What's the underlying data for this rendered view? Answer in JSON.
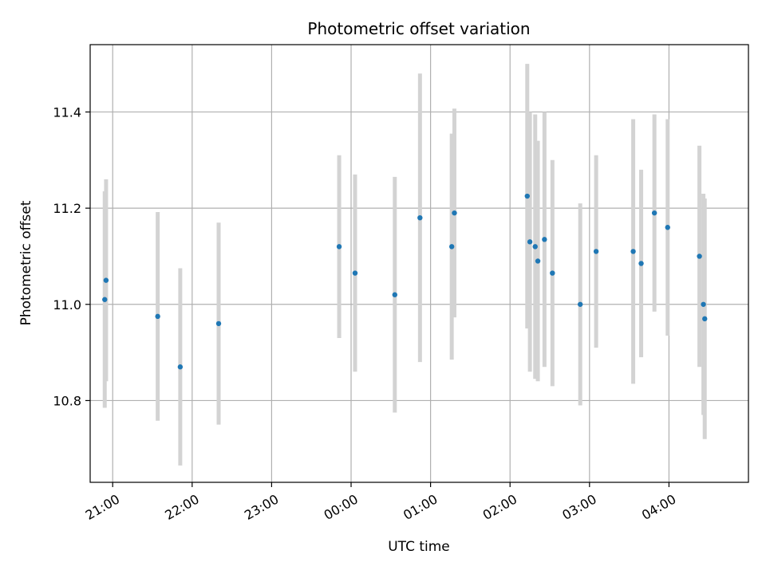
{
  "chart_data": {
    "type": "scatter",
    "title": "Photometric offset variation",
    "xlabel": "UTC time",
    "ylabel": "Photometric offset",
    "x_tick_labels": [
      "21:00",
      "22:00",
      "23:00",
      "00:00",
      "01:00",
      "02:00",
      "03:00",
      "04:00"
    ],
    "y_tick_labels": [
      "10.8",
      "11.0",
      "11.2",
      "11.4"
    ],
    "y_ticks": [
      10.8,
      11.0,
      11.2,
      11.4
    ],
    "ylim": [
      10.63,
      11.54
    ],
    "xlim": [
      "20:43",
      "05:00"
    ],
    "grid": true,
    "colors": {
      "point": "#1f77b4",
      "errorbar": "#d3d3d3",
      "grid": "#b0b0b0"
    },
    "points": [
      {
        "time": "20:54",
        "value": 11.01,
        "error": 0.225
      },
      {
        "time": "20:55",
        "value": 11.05,
        "error": 0.21
      },
      {
        "time": "21:34",
        "value": 10.975,
        "error": 0.217
      },
      {
        "time": "21:51",
        "value": 10.87,
        "error": 0.205
      },
      {
        "time": "22:20",
        "value": 10.96,
        "error": 0.21
      },
      {
        "time": "23:51",
        "value": 11.12,
        "error": 0.19
      },
      {
        "time": "00:03",
        "value": 11.065,
        "error": 0.205
      },
      {
        "time": "00:33",
        "value": 11.02,
        "error": 0.245
      },
      {
        "time": "00:52",
        "value": 11.18,
        "error": 0.3
      },
      {
        "time": "01:16",
        "value": 11.12,
        "error": 0.235
      },
      {
        "time": "01:18",
        "value": 11.19,
        "error": 0.217
      },
      {
        "time": "02:13",
        "value": 11.225,
        "error": 0.275
      },
      {
        "time": "02:15",
        "value": 11.13,
        "error": 0.27
      },
      {
        "time": "02:19",
        "value": 11.12,
        "error": 0.275
      },
      {
        "time": "02:21",
        "value": 11.09,
        "error": 0.25
      },
      {
        "time": "02:26",
        "value": 11.135,
        "error": 0.265
      },
      {
        "time": "02:32",
        "value": 11.065,
        "error": 0.235
      },
      {
        "time": "02:53",
        "value": 11.0,
        "error": 0.21
      },
      {
        "time": "03:05",
        "value": 11.11,
        "error": 0.2
      },
      {
        "time": "03:33",
        "value": 11.11,
        "error": 0.275
      },
      {
        "time": "03:39",
        "value": 11.085,
        "error": 0.195
      },
      {
        "time": "03:49",
        "value": 11.19,
        "error": 0.205
      },
      {
        "time": "03:59",
        "value": 11.16,
        "error": 0.225
      },
      {
        "time": "04:23",
        "value": 11.1,
        "error": 0.23
      },
      {
        "time": "04:26",
        "value": 11.0,
        "error": 0.23
      },
      {
        "time": "04:27",
        "value": 10.97,
        "error": 0.25
      }
    ]
  }
}
